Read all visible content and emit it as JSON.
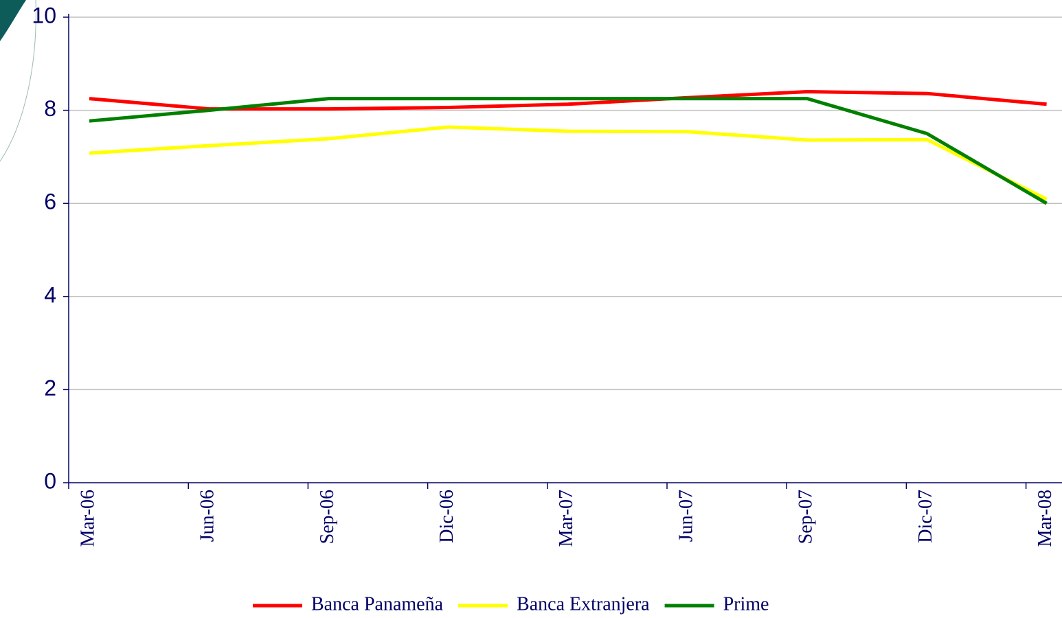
{
  "chart_data": {
    "type": "line",
    "categories": [
      "Mar-06",
      "Jun-06",
      "Sep-06",
      "Dic-06",
      "Mar-07",
      "Jun-07",
      "Sep-07",
      "Dic-07",
      "Mar-08"
    ],
    "series": [
      {
        "name": "Banca Panameña",
        "color": "#ff0000",
        "values": [
          8.25,
          8.03,
          8.03,
          8.06,
          8.13,
          8.27,
          8.4,
          8.36,
          8.13
        ]
      },
      {
        "name": "Banca Extranjera",
        "color": "#ffff00",
        "values": [
          7.08,
          7.24,
          7.39,
          7.64,
          7.55,
          7.54,
          7.36,
          7.37,
          6.09
        ]
      },
      {
        "name": "Prime",
        "color": "#008000",
        "values": [
          7.77,
          8.0,
          8.25,
          8.25,
          8.25,
          8.25,
          8.25,
          7.5,
          6.0
        ]
      }
    ],
    "ylim": [
      0,
      10
    ],
    "yticks": [
      0,
      2,
      4,
      6,
      8,
      10
    ],
    "grid": true
  }
}
